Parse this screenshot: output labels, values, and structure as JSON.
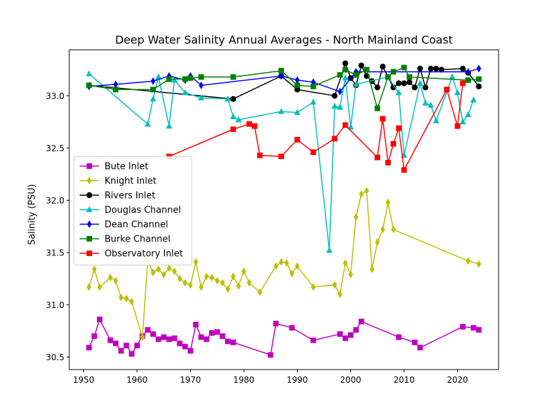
{
  "chart_data": {
    "type": "line",
    "title": "Deep Water Salinity Annual Averages - North Mainland Coast",
    "xlabel": "",
    "ylabel": "Salinity (PSU)",
    "xlim": [
      1947.3,
      2027.7
    ],
    "ylim": [
      30.38,
      33.44
    ],
    "xticks": [
      1950,
      1960,
      1970,
      1980,
      1990,
      2000,
      2010,
      2020
    ],
    "yticks": [
      30.5,
      31.0,
      31.5,
      32.0,
      32.5,
      33.0
    ],
    "yticklabels": [
      "30.5",
      "31.0",
      "31.5",
      "32.0",
      "32.5",
      "33.0"
    ],
    "grid": false,
    "legend": "center-left",
    "series": [
      {
        "name": "Bute Inlet",
        "color": "#bf00bf",
        "marker": "square",
        "points": [
          [
            1951,
            30.59
          ],
          [
            1952,
            30.7
          ],
          [
            1953,
            30.86
          ],
          [
            1955,
            30.66
          ],
          [
            1956,
            30.63
          ],
          [
            1957,
            30.56
          ],
          [
            1958,
            30.61
          ],
          [
            1959,
            30.53
          ],
          [
            1960,
            30.61
          ],
          [
            1961,
            30.7
          ],
          [
            1962,
            30.76
          ],
          [
            1963,
            30.72
          ],
          [
            1964,
            30.67
          ],
          [
            1965,
            30.69
          ],
          [
            1966,
            30.67
          ],
          [
            1967,
            30.68
          ],
          [
            1968,
            30.63
          ],
          [
            1969,
            30.6
          ],
          [
            1970,
            30.56
          ],
          [
            1971,
            30.81
          ],
          [
            1972,
            30.69
          ],
          [
            1973,
            30.67
          ],
          [
            1974,
            30.73
          ],
          [
            1975,
            30.74
          ],
          [
            1976,
            30.7
          ],
          [
            1977,
            30.65
          ],
          [
            1978,
            30.64
          ],
          [
            1985,
            30.52
          ],
          [
            1986,
            30.82
          ],
          [
            1989,
            30.78
          ],
          [
            1993,
            30.66
          ],
          [
            1998,
            30.72
          ],
          [
            1999,
            30.68
          ],
          [
            2000,
            30.71
          ],
          [
            2001,
            30.76
          ],
          [
            2002,
            30.84
          ],
          [
            2009,
            30.69
          ],
          [
            2012,
            30.64
          ],
          [
            2013,
            30.59
          ],
          [
            2021,
            30.79
          ],
          [
            2023,
            30.78
          ],
          [
            2024,
            30.76
          ]
        ]
      },
      {
        "name": "Knight Inlet",
        "color": "#bfbf00",
        "marker": "thin_diamond",
        "points": [
          [
            1951,
            31.17
          ],
          [
            1952,
            31.34
          ],
          [
            1953,
            31.17
          ],
          [
            1955,
            31.26
          ],
          [
            1956,
            31.23
          ],
          [
            1957,
            31.07
          ],
          [
            1958,
            31.06
          ],
          [
            1959,
            31.03
          ],
          [
            1961,
            30.69
          ],
          [
            1962,
            31.43
          ],
          [
            1963,
            31.31
          ],
          [
            1964,
            31.34
          ],
          [
            1965,
            31.29
          ],
          [
            1966,
            31.35
          ],
          [
            1967,
            31.32
          ],
          [
            1968,
            31.25
          ],
          [
            1969,
            31.21
          ],
          [
            1970,
            31.19
          ],
          [
            1971,
            31.41
          ],
          [
            1972,
            31.17
          ],
          [
            1973,
            31.27
          ],
          [
            1974,
            31.26
          ],
          [
            1975,
            31.23
          ],
          [
            1976,
            31.21
          ],
          [
            1977,
            31.15
          ],
          [
            1978,
            31.27
          ],
          [
            1979,
            31.18
          ],
          [
            1980,
            31.32
          ],
          [
            1981,
            31.21
          ],
          [
            1983,
            31.12
          ],
          [
            1986,
            31.37
          ],
          [
            1987,
            31.41
          ],
          [
            1988,
            31.4
          ],
          [
            1989,
            31.3
          ],
          [
            1990,
            31.37
          ],
          [
            1993,
            31.17
          ],
          [
            1997,
            31.19
          ],
          [
            1998,
            31.1
          ],
          [
            1999,
            31.4
          ],
          [
            2000,
            31.29
          ],
          [
            2001,
            31.84
          ],
          [
            2002,
            32.06
          ],
          [
            2003,
            32.09
          ],
          [
            2004,
            31.34
          ],
          [
            2005,
            31.6
          ],
          [
            2006,
            31.72
          ],
          [
            2007,
            31.98
          ],
          [
            2008,
            31.72
          ],
          [
            2022,
            31.42
          ],
          [
            2024,
            31.39
          ]
        ]
      },
      {
        "name": "Rivers Inlet",
        "color": "#000000",
        "marker": "circle",
        "points": [
          [
            1951,
            33.1
          ],
          [
            1978,
            32.97
          ],
          [
            1987,
            33.19
          ],
          [
            1990,
            33.06
          ],
          [
            1997,
            33.0
          ],
          [
            1999,
            33.31
          ],
          [
            2000,
            33.17
          ],
          [
            2001,
            33.1
          ],
          [
            2002,
            33.29
          ],
          [
            2003,
            33.19
          ],
          [
            2004,
            33.14
          ],
          [
            2005,
            33.08
          ],
          [
            2006,
            33.28
          ],
          [
            2008,
            33.08
          ],
          [
            2009,
            33.12
          ],
          [
            2010,
            33.12
          ],
          [
            2011,
            33.13
          ],
          [
            2012,
            33.08
          ],
          [
            2013,
            33.26
          ],
          [
            2014,
            33.08
          ],
          [
            2015,
            33.26
          ],
          [
            2016,
            33.26
          ],
          [
            2017,
            33.25
          ],
          [
            2021,
            33.26
          ],
          [
            2022,
            33.22
          ],
          [
            2024,
            33.09
          ]
        ]
      },
      {
        "name": "Douglas Channel",
        "color": "#00bfbf",
        "marker": "triangle",
        "points": [
          [
            1951,
            33.21
          ],
          [
            1962,
            32.73
          ],
          [
            1963,
            32.97
          ],
          [
            1964,
            33.18
          ],
          [
            1966,
            32.71
          ],
          [
            1967,
            33.15
          ],
          [
            1969,
            33.03
          ],
          [
            1972,
            32.98
          ],
          [
            1977,
            32.97
          ],
          [
            1978,
            32.8
          ],
          [
            1979,
            32.77
          ],
          [
            1987,
            32.85
          ],
          [
            1990,
            32.84
          ],
          [
            1993,
            32.94
          ],
          [
            1996,
            31.52
          ],
          [
            1997,
            32.9
          ],
          [
            1998,
            32.89
          ],
          [
            1999,
            33.17
          ],
          [
            2000,
            32.7
          ],
          [
            2001,
            33.11
          ],
          [
            2007,
            33.18
          ],
          [
            2009,
            33.03
          ],
          [
            2010,
            32.43
          ],
          [
            2013,
            33.12
          ],
          [
            2014,
            32.93
          ],
          [
            2015,
            32.91
          ],
          [
            2016,
            32.76
          ],
          [
            2019,
            33.18
          ],
          [
            2020,
            33.03
          ],
          [
            2021,
            32.75
          ],
          [
            2022,
            32.82
          ],
          [
            2023,
            32.96
          ]
        ]
      },
      {
        "name": "Dean Channel",
        "color": "#0000ff",
        "marker": "thin_diamond",
        "points": [
          [
            1951,
            33.09
          ],
          [
            1956,
            33.11
          ],
          [
            1963,
            33.14
          ],
          [
            1966,
            33.19
          ],
          [
            1969,
            33.15
          ],
          [
            1970,
            33.19
          ],
          [
            1972,
            33.1
          ],
          [
            1987,
            33.19
          ],
          [
            1990,
            33.15
          ],
          [
            1993,
            33.13
          ],
          [
            1998,
            33.04
          ],
          [
            2001,
            33.23
          ],
          [
            2022,
            33.23
          ],
          [
            2024,
            33.26
          ]
        ]
      },
      {
        "name": "Burke Channel",
        "color": "#008000",
        "marker": "square",
        "points": [
          [
            1951,
            33.1
          ],
          [
            1956,
            33.06
          ],
          [
            1963,
            33.06
          ],
          [
            1966,
            33.16
          ],
          [
            1969,
            33.16
          ],
          [
            1970,
            33.17
          ],
          [
            1972,
            33.18
          ],
          [
            1978,
            33.18
          ],
          [
            1987,
            33.24
          ],
          [
            1990,
            33.1
          ],
          [
            1993,
            33.09
          ],
          [
            1998,
            33.2
          ],
          [
            1999,
            33.25
          ],
          [
            2001,
            33.2
          ],
          [
            2003,
            33.25
          ],
          [
            2005,
            32.88
          ],
          [
            2007,
            33.18
          ],
          [
            2008,
            33.23
          ],
          [
            2010,
            33.27
          ],
          [
            2011,
            33.18
          ],
          [
            2022,
            33.15
          ],
          [
            2024,
            33.16
          ]
        ]
      },
      {
        "name": "Observatory Inlet",
        "color": "#ff0000",
        "marker": "square",
        "points": [
          [
            1966,
            32.42
          ],
          [
            1978,
            32.68
          ],
          [
            1981,
            32.73
          ],
          [
            1982,
            32.71
          ],
          [
            1983,
            32.43
          ],
          [
            1987,
            32.42
          ],
          [
            1990,
            32.58
          ],
          [
            1993,
            32.46
          ],
          [
            1997,
            32.59
          ],
          [
            1999,
            32.72
          ],
          [
            2005,
            32.41
          ],
          [
            2006,
            32.78
          ],
          [
            2007,
            32.36
          ],
          [
            2008,
            32.54
          ],
          [
            2009,
            32.69
          ],
          [
            2010,
            32.29
          ],
          [
            2018,
            33.06
          ],
          [
            2020,
            32.71
          ],
          [
            2021,
            33.12
          ]
        ]
      }
    ]
  }
}
